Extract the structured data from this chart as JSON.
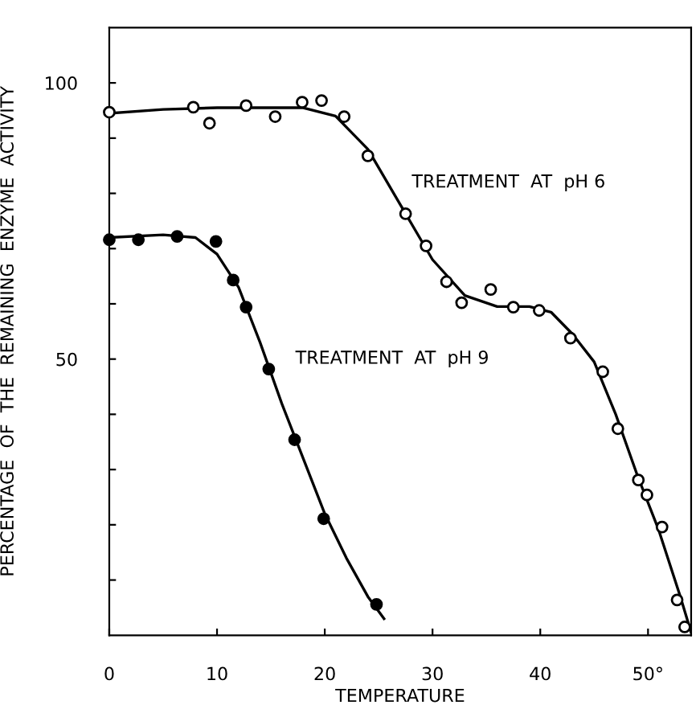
{
  "chart_data": {
    "type": "scatter",
    "xlabel": "TEMPERATURE",
    "ylabel": "PERCENTAGE  OF  THE  REMAINING  ENZYME  ACTIVITY",
    "xlim": [
      0,
      54
    ],
    "ylim": [
      0,
      110
    ],
    "xticks": [
      0,
      10,
      20,
      30,
      40,
      {
        "value": 50,
        "label": "50°"
      }
    ],
    "yticks": [
      {
        "value": 10,
        "label": null
      },
      {
        "value": 20,
        "label": null
      },
      {
        "value": 30,
        "label": null
      },
      {
        "value": 40,
        "label": null
      },
      50,
      {
        "value": 60,
        "label": null
      },
      {
        "value": 70,
        "label": null
      },
      {
        "value": 80,
        "label": null
      },
      {
        "value": 90,
        "label": null
      },
      100
    ],
    "grid": false,
    "legend": false,
    "annotations": [
      "TREATMENT  AT  pH 6",
      "TREATMENT  AT  pH 9"
    ],
    "series": [
      {
        "color": "#ffffff",
        "marker": "circle",
        "x": [
          0,
          7.8,
          9.3,
          12.7,
          15.4,
          17.9,
          19.7,
          21.8,
          24.0,
          27.5,
          29.4,
          31.3,
          32.7,
          35.4,
          37.5,
          39.9,
          42.8,
          45.8,
          47.2,
          49.1,
          49.9,
          51.3,
          52.7,
          53.4
        ],
        "values": [
          94.7,
          95.6,
          92.7,
          95.9,
          93.9,
          96.5,
          96.8,
          93.9,
          86.8,
          76.3,
          70.5,
          64.0,
          60.2,
          62.6,
          59.4,
          58.8,
          53.8,
          47.7,
          37.4,
          28.1,
          25.4,
          19.6,
          6.4,
          1.5
        ]
      },
      {
        "color": "#000000",
        "marker": "circle",
        "x": [
          0,
          2.7,
          6.3,
          9.9,
          11.5,
          12.7,
          14.8,
          17.2,
          19.9,
          24.8
        ],
        "values": [
          71.6,
          71.6,
          72.2,
          71.3,
          64.3,
          59.4,
          48.2,
          35.4,
          21.1,
          5.6
        ]
      },
      {
        "type": "line",
        "color": "#000000",
        "marker": "none",
        "line_style": "solid",
        "x": [
          0,
          5,
          10,
          18,
          21,
          24,
          27,
          30,
          33,
          36,
          39,
          41,
          43,
          45,
          47,
          49,
          51,
          53,
          54
        ],
        "values": [
          94.5,
          95.2,
          95.5,
          95.5,
          94,
          88,
          78,
          68,
          61.5,
          59.5,
          59.5,
          58.5,
          54.5,
          49.5,
          40,
          29,
          19,
          7,
          0.5
        ]
      },
      {
        "type": "line",
        "color": "#000000",
        "marker": "none",
        "line_style": "solid",
        "x": [
          0,
          5,
          8,
          10,
          12,
          14,
          16,
          18,
          20,
          22,
          24,
          25.5
        ],
        "values": [
          72,
          72.5,
          72,
          69,
          63,
          53,
          42,
          32,
          22,
          14,
          7,
          3
        ]
      }
    ]
  }
}
